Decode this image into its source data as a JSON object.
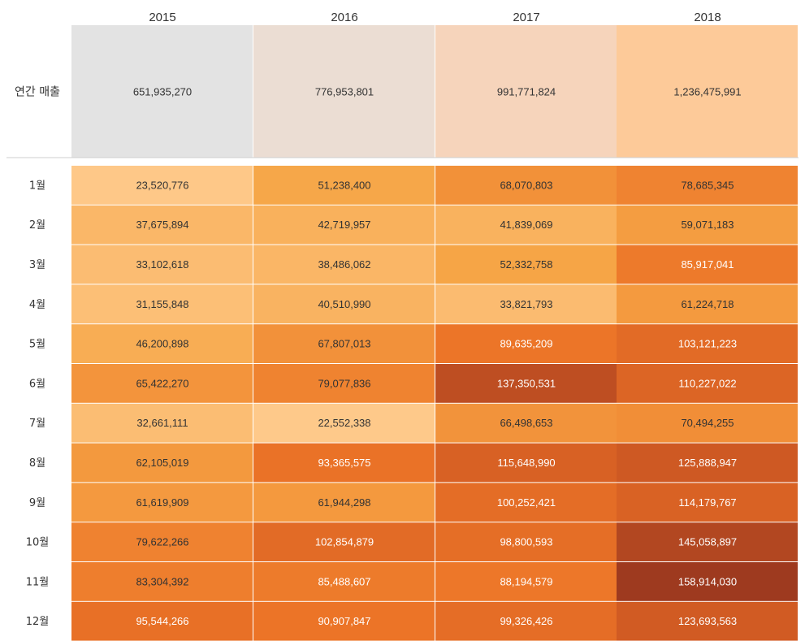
{
  "chart_data": [
    {
      "type": "heatmap",
      "title": "",
      "columns": [
        "2015",
        "2016",
        "2017",
        "2018"
      ],
      "rows": [
        "연간 매출"
      ],
      "values": [
        [
          651935270,
          776953801,
          991771824,
          1236475991
        ]
      ],
      "labels": [
        [
          "651,935,270",
          "776,953,801",
          "991,771,824",
          "1,236,475,991"
        ]
      ],
      "colors": [
        [
          "#e3e3e3",
          "#ebddd3",
          "#f6d4bb",
          "#fdca99"
        ]
      ]
    },
    {
      "type": "heatmap",
      "title": "",
      "columns": [
        "2015",
        "2016",
        "2017",
        "2018"
      ],
      "rows": [
        "1월",
        "2월",
        "3월",
        "4월",
        "5월",
        "6월",
        "7월",
        "8월",
        "9월",
        "10월",
        "11월",
        "12월"
      ],
      "values": [
        [
          23520776,
          51238400,
          68070803,
          78685345
        ],
        [
          37675894,
          42719957,
          41839069,
          59071183
        ],
        [
          33102618,
          38486062,
          52332758,
          85917041
        ],
        [
          31155848,
          40510990,
          33821793,
          61224718
        ],
        [
          46200898,
          67807013,
          89635209,
          103121223
        ],
        [
          65422270,
          79077836,
          137350531,
          110227022
        ],
        [
          32661111,
          22552338,
          66498653,
          70494255
        ],
        [
          62105019,
          93365575,
          115648990,
          125888947
        ],
        [
          61619909,
          61944298,
          100252421,
          114179767
        ],
        [
          79622266,
          102854879,
          98800593,
          145058897
        ],
        [
          83304392,
          85488607,
          88194579,
          158914030
        ],
        [
          95544266,
          90907847,
          99326426,
          123693563
        ]
      ],
      "labels": [
        [
          "23,520,776",
          "51,238,400",
          "68,070,803",
          "78,685,345"
        ],
        [
          "37,675,894",
          "42,719,957",
          "41,839,069",
          "59,071,183"
        ],
        [
          "33,102,618",
          "38,486,062",
          "52,332,758",
          "85,917,041"
        ],
        [
          "31,155,848",
          "40,510,990",
          "33,821,793",
          "61,224,718"
        ],
        [
          "46,200,898",
          "67,807,013",
          "89,635,209",
          "103,121,223"
        ],
        [
          "65,422,270",
          "79,077,836",
          "137,350,531",
          "110,227,022"
        ],
        [
          "32,661,111",
          "22,552,338",
          "66,498,653",
          "70,494,255"
        ],
        [
          "62,105,019",
          "93,365,575",
          "115,648,990",
          "125,888,947"
        ],
        [
          "61,619,909",
          "61,944,298",
          "100,252,421",
          "114,179,767"
        ],
        [
          "79,622,266",
          "102,854,879",
          "98,800,593",
          "145,058,897"
        ],
        [
          "83,304,392",
          "85,488,607",
          "88,194,579",
          "158,914,030"
        ],
        [
          "95,544,266",
          "90,907,847",
          "99,326,426",
          "123,693,563"
        ]
      ],
      "color_scale": {
        "type": "sequential",
        "domain": [
          22552338,
          158914030
        ],
        "range": [
          "#fec98a",
          "#9e3a1f"
        ]
      }
    }
  ]
}
